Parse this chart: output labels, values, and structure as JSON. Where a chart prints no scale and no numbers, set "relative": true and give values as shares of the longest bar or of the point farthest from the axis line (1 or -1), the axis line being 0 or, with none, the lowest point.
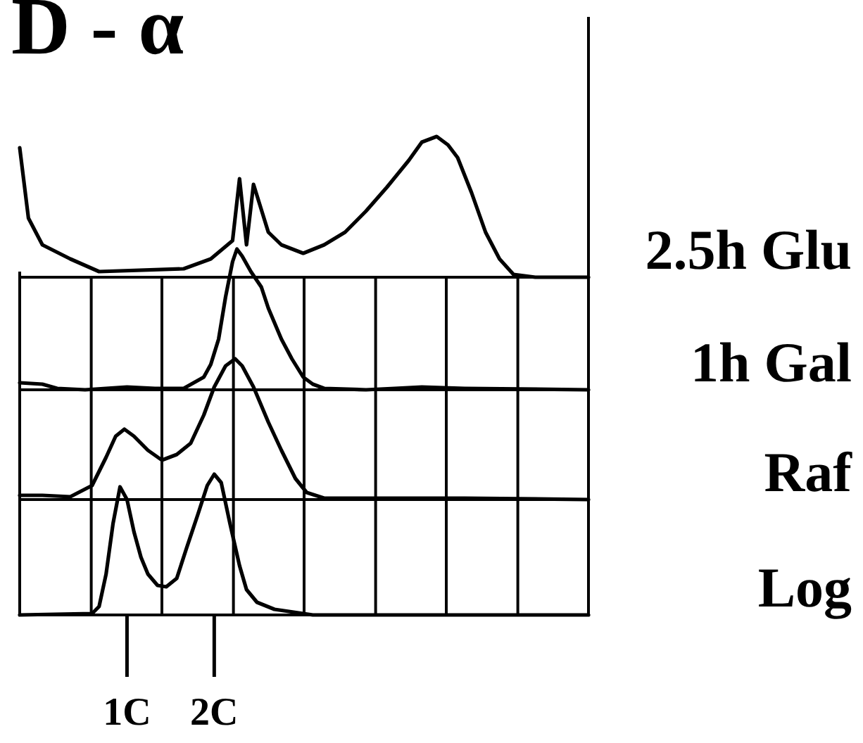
{
  "chart_data": [
    {
      "type": "line",
      "title": "D - α",
      "relative": true,
      "xlim": [
        -0.23,
        6.29
      ],
      "grid": false,
      "tick_labels": false,
      "xticks": [
        {
          "value": -0.23,
          "label": null
        },
        {
          "value": 6.29,
          "label": null
        }
      ],
      "series": [
        {
          "name": "2.5h Glu",
          "color": "#000000",
          "x": [
            -0.23,
            -0.13,
            0.03,
            0.35,
            0.68,
            1.65,
            1.96,
            2.21,
            2.29,
            2.37,
            2.45,
            2.62,
            2.77,
            3.02,
            3.26,
            3.5,
            3.74,
            3.98,
            4.23,
            4.38,
            4.55,
            4.68,
            4.79,
            4.95,
            5.11,
            5.27,
            5.43,
            5.68,
            6.29
          ],
          "values": [
            0.92,
            0.42,
            0.23,
            0.13,
            0.04,
            0.06,
            0.13,
            0.26,
            0.7,
            0.23,
            0.66,
            0.32,
            0.23,
            0.17,
            0.23,
            0.32,
            0.47,
            0.64,
            0.83,
            0.96,
            1,
            0.94,
            0.85,
            0.6,
            0.32,
            0.13,
            0.02,
            0,
            0
          ]
        }
      ]
    },
    {
      "type": "line",
      "relative": true,
      "xlim": [
        -0.23,
        6.29
      ],
      "grid": "x",
      "tick_labels": false,
      "xticks": [
        {
          "value": -0.23,
          "label": null
        },
        {
          "value": 0.59,
          "label": null
        },
        {
          "value": 1.4,
          "label": null
        },
        {
          "value": 2.22,
          "label": null
        },
        {
          "value": 3.03,
          "label": null
        },
        {
          "value": 3.85,
          "label": null
        },
        {
          "value": 4.66,
          "label": null
        },
        {
          "value": 5.48,
          "label": null
        },
        {
          "value": 6.29,
          "label": null
        }
      ],
      "series": [
        {
          "name": "1h Gal",
          "color": "#000000",
          "x": [
            -0.23,
            0.03,
            0.2,
            0.52,
            1,
            1.32,
            1.65,
            1.88,
            1.96,
            2.05,
            2.13,
            2.21,
            2.26,
            2.32,
            2.42,
            2.54,
            2.62,
            2.77,
            2.89,
            3.02,
            3.13,
            3.26,
            3.74,
            4.07,
            4.38,
            4.87,
            6.29
          ],
          "values": [
            0.05,
            0.04,
            0.01,
            0,
            0.02,
            0.01,
            0.01,
            0.09,
            0.18,
            0.36,
            0.66,
            0.91,
            1,
            0.95,
            0.84,
            0.73,
            0.58,
            0.36,
            0.22,
            0.09,
            0.04,
            0.01,
            0,
            0.01,
            0.02,
            0.01,
            0
          ]
        }
      ]
    },
    {
      "type": "line",
      "relative": true,
      "xlim": [
        -0.23,
        6.29
      ],
      "grid": "x",
      "tick_labels": false,
      "xticks": [
        {
          "value": -0.23,
          "label": null
        },
        {
          "value": 0.59,
          "label": null
        },
        {
          "value": 1.4,
          "label": null
        },
        {
          "value": 2.22,
          "label": null
        },
        {
          "value": 3.03,
          "label": null
        },
        {
          "value": 3.85,
          "label": null
        },
        {
          "value": 4.66,
          "label": null
        },
        {
          "value": 5.48,
          "label": null
        },
        {
          "value": 6.29,
          "label": null
        }
      ],
      "series": [
        {
          "name": "Raf",
          "color": "#000000",
          "x": [
            -0.23,
            0.03,
            0.35,
            0.6,
            0.76,
            0.87,
            0.97,
            1.08,
            1.24,
            1.4,
            1.57,
            1.73,
            1.88,
            2,
            2.13,
            2.24,
            2.32,
            2.45,
            2.62,
            2.77,
            2.93,
            3.06,
            3.26,
            4.38,
            4.87,
            6.29
          ],
          "values": [
            0.03,
            0.03,
            0.02,
            0.1,
            0.3,
            0.45,
            0.5,
            0.45,
            0.35,
            0.28,
            0.32,
            0.4,
            0.6,
            0.8,
            0.95,
            1,
            0.95,
            0.8,
            0.55,
            0.35,
            0.15,
            0.05,
            0.01,
            0.01,
            0.01,
            0
          ]
        }
      ]
    },
    {
      "type": "line",
      "relative": true,
      "xlim": [
        -0.23,
        6.29
      ],
      "grid": "x",
      "tick_labels": "x",
      "xticks": [
        {
          "value": -0.23,
          "label": null
        },
        {
          "value": 0.59,
          "label": null
        },
        {
          "value": 1,
          "label": "1C"
        },
        {
          "value": 1.4,
          "label": null
        },
        {
          "value": 2,
          "label": "2C"
        },
        {
          "value": 2.22,
          "label": null
        },
        {
          "value": 3.03,
          "label": null
        },
        {
          "value": 3.85,
          "label": null
        },
        {
          "value": 4.66,
          "label": null
        },
        {
          "value": 5.48,
          "label": null
        },
        {
          "value": 6.29,
          "label": null
        }
      ],
      "series": [
        {
          "name": "Log",
          "color": "#000000",
          "x": [
            -0.23,
            0.6,
            0.68,
            0.76,
            0.84,
            0.92,
            1,
            1.08,
            1.16,
            1.24,
            1.35,
            1.45,
            1.57,
            1.68,
            1.81,
            1.92,
            2,
            2.08,
            2.18,
            2.29,
            2.37,
            2.49,
            2.69,
            3.13,
            6.29
          ],
          "values": [
            0,
            0.01,
            0.06,
            0.29,
            0.65,
            0.91,
            0.82,
            0.59,
            0.41,
            0.29,
            0.21,
            0.2,
            0.26,
            0.47,
            0.71,
            0.92,
            1,
            0.94,
            0.65,
            0.35,
            0.18,
            0.09,
            0.04,
            0,
            0
          ]
        }
      ]
    }
  ]
}
